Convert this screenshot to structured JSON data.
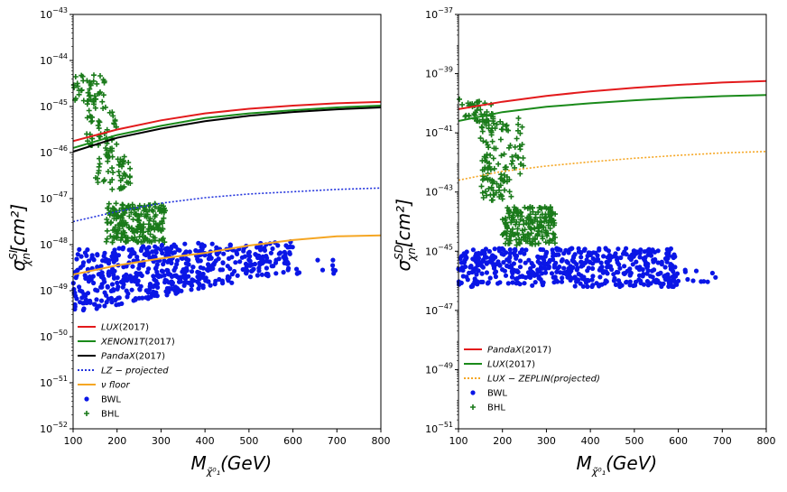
{
  "chart_data": [
    {
      "type": "scatter",
      "panel": "SI",
      "xlabel_main": "M",
      "xlabel_sub": "χ̃⁰₁",
      "xlabel_tail": "(GeV)",
      "ylabel_main": "σ",
      "ylabel_sup": "SI",
      "ylabel_sub": "χn",
      "ylabel_tail": "[cm²]",
      "xlim": [
        100,
        800
      ],
      "xticks": [
        "100",
        "200",
        "300",
        "400",
        "500",
        "600",
        "700",
        "800"
      ],
      "ylim_exp": [
        -52,
        -43
      ],
      "yscale": "log",
      "yticks": [
        {
          "exp": -52,
          "label": "10^-52"
        },
        {
          "exp": -51,
          "label": "10^-51"
        },
        {
          "exp": -50,
          "label": "10^-50"
        },
        {
          "exp": -49,
          "label": "10^-49"
        },
        {
          "exp": -48,
          "label": "10^-48"
        },
        {
          "exp": -47,
          "label": "10^-47"
        },
        {
          "exp": -46,
          "label": "10^-46"
        },
        {
          "exp": -45,
          "label": "10^-45"
        },
        {
          "exp": -44,
          "label": "10^-44"
        },
        {
          "exp": -43,
          "label": "10^-43"
        }
      ],
      "legend_position": "lower-left",
      "lines": [
        {
          "name": "LUX",
          "suffix": "(2017)",
          "italic": true,
          "color": "#e31a1c",
          "style": "solid",
          "x": [
            100,
            200,
            300,
            400,
            500,
            600,
            700,
            800
          ],
          "log_y": [
            -45.75,
            -45.5,
            -45.3,
            -45.15,
            -45.05,
            -44.98,
            -44.93,
            -44.9
          ]
        },
        {
          "name": "XENON1T",
          "suffix": "(2017)",
          "italic": true,
          "color": "#1a8a1a",
          "style": "solid",
          "x": [
            100,
            200,
            300,
            400,
            500,
            600,
            700,
            800
          ],
          "log_y": [
            -45.9,
            -45.62,
            -45.42,
            -45.25,
            -45.15,
            -45.08,
            -45.02,
            -44.98
          ]
        },
        {
          "name": "PandaX",
          "suffix": "(2017)",
          "italic": true,
          "color": "#000000",
          "style": "solid",
          "x": [
            100,
            200,
            300,
            400,
            500,
            600,
            700,
            800
          ],
          "log_y": [
            -45.98,
            -45.68,
            -45.48,
            -45.32,
            -45.2,
            -45.12,
            -45.06,
            -45.02
          ]
        },
        {
          "name": "LZ − projected",
          "suffix": "",
          "italic": true,
          "color": "#2233dd",
          "style": "dotted",
          "x": [
            100,
            200,
            300,
            400,
            500,
            600,
            700,
            800
          ],
          "log_y": [
            -47.5,
            -47.28,
            -47.1,
            -46.98,
            -46.9,
            -46.85,
            -46.8,
            -46.77
          ]
        },
        {
          "name": "ν floor",
          "suffix": "",
          "italic": true,
          "color": "#f5a623",
          "style": "solid",
          "x": [
            100,
            200,
            300,
            400,
            500,
            600,
            700,
            800
          ],
          "log_y": [
            -48.65,
            -48.45,
            -48.3,
            -48.18,
            -48.02,
            -47.9,
            -47.82,
            -47.8
          ]
        }
      ],
      "scatter_series": [
        {
          "name": "BWL",
          "marker": "dot",
          "color": "#0a16e6"
        },
        {
          "name": "BHL",
          "marker": "plus",
          "color": "#1a7a1a"
        }
      ],
      "clusters": [
        {
          "series": 0,
          "x": [
            100,
            420
          ],
          "log_y_low": [
            -49.5,
            -48.9
          ],
          "log_y_high": [
            -48.1,
            -47.95
          ],
          "n": 420
        },
        {
          "series": 0,
          "x": [
            420,
            600
          ],
          "log_y_low": [
            -48.9,
            -48.6
          ],
          "log_y_high": [
            -48.0,
            -47.9
          ],
          "n": 140
        },
        {
          "series": 0,
          "x": [
            600,
            700
          ],
          "log_y_low": [
            -48.75,
            -48.65
          ],
          "log_y_high": [
            -48.35,
            -48.25
          ],
          "n": 10
        },
        {
          "series": 1,
          "x": [
            100,
            175
          ],
          "log_y_low": [
            -44.9,
            -44.9
          ],
          "log_y_high": [
            -44.3,
            -44.3
          ],
          "n": 40
        },
        {
          "series": 1,
          "x": [
            130,
            200
          ],
          "log_y_low": [
            -45.8,
            -46.2
          ],
          "log_y_high": [
            -44.6,
            -45.2
          ],
          "n": 60
        },
        {
          "series": 1,
          "x": [
            150,
            230
          ],
          "log_y_low": [
            -46.8,
            -46.8
          ],
          "log_y_high": [
            -46.0,
            -46.0
          ],
          "n": 50
        },
        {
          "series": 1,
          "x": [
            175,
            310
          ],
          "log_y_low": [
            -47.95,
            -47.95
          ],
          "log_y_high": [
            -47.1,
            -47.1
          ],
          "n": 220
        }
      ]
    },
    {
      "type": "scatter",
      "panel": "SD",
      "xlabel_main": "M",
      "xlabel_sub": "χ̃⁰₁",
      "xlabel_tail": "(GeV)",
      "ylabel_main": "σ",
      "ylabel_sup": "SD",
      "ylabel_sub": "χn",
      "ylabel_tail": "[cm²]",
      "xlim": [
        100,
        800
      ],
      "xticks": [
        "100",
        "200",
        "300",
        "400",
        "500",
        "600",
        "700",
        "800"
      ],
      "ylim_exp": [
        -51,
        -37
      ],
      "yscale": "log",
      "yticks": [
        {
          "exp": -51,
          "label": "10^-51"
        },
        {
          "exp": -49,
          "label": "10^-49"
        },
        {
          "exp": -47,
          "label": "10^-47"
        },
        {
          "exp": -45,
          "label": "10^-45"
        },
        {
          "exp": -43,
          "label": "10^-43"
        },
        {
          "exp": -41,
          "label": "10^-41"
        },
        {
          "exp": -39,
          "label": "10^-39"
        },
        {
          "exp": -37,
          "label": "10^-37"
        }
      ],
      "legend_position": "lower-left",
      "lines": [
        {
          "name": "PandaX",
          "suffix": "(2017)",
          "italic": true,
          "color": "#e31a1c",
          "style": "solid",
          "x": [
            100,
            200,
            300,
            400,
            500,
            600,
            700,
            800
          ],
          "log_y": [
            -40.2,
            -39.95,
            -39.75,
            -39.6,
            -39.48,
            -39.38,
            -39.3,
            -39.25
          ]
        },
        {
          "name": "LUX",
          "suffix": "(2017)",
          "italic": true,
          "color": "#1a8a1a",
          "style": "solid",
          "x": [
            100,
            200,
            300,
            400,
            500,
            600,
            700,
            800
          ],
          "log_y": [
            -40.6,
            -40.3,
            -40.12,
            -40.0,
            -39.9,
            -39.82,
            -39.76,
            -39.72
          ]
        },
        {
          "name": "LUX − ZEPLIN(projected)",
          "suffix": "",
          "italic": true,
          "color": "#f5a623",
          "style": "dotted",
          "x": [
            100,
            200,
            300,
            400,
            500,
            600,
            700,
            800
          ],
          "log_y": [
            -42.6,
            -42.3,
            -42.12,
            -41.98,
            -41.86,
            -41.76,
            -41.68,
            -41.63
          ]
        }
      ],
      "scatter_series": [
        {
          "name": "BWL",
          "marker": "dot",
          "color": "#0a16e6"
        },
        {
          "name": "BHL",
          "marker": "plus",
          "color": "#1a7a1a"
        }
      ],
      "clusters": [
        {
          "series": 0,
          "x": [
            100,
            600
          ],
          "log_y_low": [
            -46.2,
            -46.2
          ],
          "log_y_high": [
            -44.9,
            -44.9
          ],
          "n": 520
        },
        {
          "series": 0,
          "x": [
            600,
            700
          ],
          "log_y_low": [
            -46.0,
            -46.1
          ],
          "log_y_high": [
            -45.6,
            -45.5
          ],
          "n": 10
        },
        {
          "series": 1,
          "x": [
            100,
            180
          ],
          "log_y_low": [
            -40.5,
            -40.7
          ],
          "log_y_high": [
            -39.8,
            -40.0
          ],
          "n": 40
        },
        {
          "series": 1,
          "x": [
            150,
            250
          ],
          "log_y_low": [
            -42.5,
            -42.5
          ],
          "log_y_high": [
            -40.5,
            -40.5
          ],
          "n": 90
        },
        {
          "series": 1,
          "x": [
            150,
            220
          ],
          "log_y_low": [
            -43.3,
            -43.3
          ],
          "log_y_high": [
            -42.5,
            -42.5
          ],
          "n": 40
        },
        {
          "series": 1,
          "x": [
            200,
            320
          ],
          "log_y_low": [
            -44.8,
            -44.8
          ],
          "log_y_high": [
            -43.5,
            -43.5
          ],
          "n": 200
        }
      ]
    }
  ]
}
